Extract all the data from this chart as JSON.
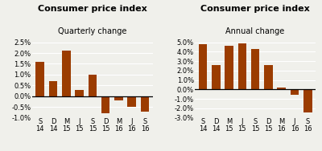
{
  "chart1": {
    "title": "Consumer price index",
    "subtitle": "Quarterly change",
    "categories": [
      "S\n14",
      "D\n14",
      "M\n15",
      "J\n15",
      "S\n15",
      "D\n15",
      "M\n16",
      "J\n16",
      "S\n16"
    ],
    "values": [
      1.6,
      0.7,
      2.1,
      0.3,
      1.0,
      -0.8,
      -0.2,
      -0.5,
      -0.7
    ],
    "ylim": [
      -1.0,
      2.5
    ],
    "yticks": [
      -1.0,
      -0.5,
      0.0,
      0.5,
      1.0,
      1.5,
      2.0,
      2.5
    ]
  },
  "chart2": {
    "title": "Consumer price index",
    "subtitle": "Annual change",
    "categories": [
      "S\n14",
      "D\n14",
      "M\n15",
      "J\n15",
      "S\n15",
      "D\n15",
      "M\n16",
      "J\n16",
      "S\n16"
    ],
    "values": [
      4.8,
      2.6,
      4.6,
      4.9,
      4.3,
      2.6,
      0.2,
      -0.6,
      -2.4
    ],
    "ylim": [
      -3.0,
      5.0
    ],
    "yticks": [
      -3.0,
      -2.0,
      -1.0,
      0.0,
      1.0,
      2.0,
      3.0,
      4.0,
      5.0
    ]
  },
  "bar_color": "#9B3C00",
  "bg_color": "#f0f0eb",
  "title_fontsize": 8,
  "subtitle_fontsize": 7,
  "tick_fontsize": 6
}
